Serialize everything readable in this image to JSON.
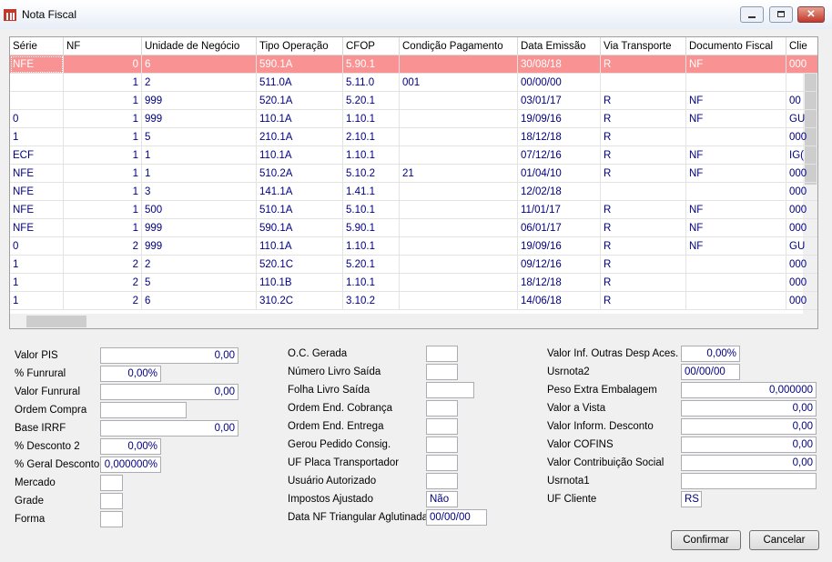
{
  "window": {
    "title": "Nota Fiscal"
  },
  "table": {
    "columns": [
      "Série",
      "NF",
      "Unidade de Negócio",
      "Tipo Operação",
      "CFOP",
      "Condição Pagamento",
      "Data Emissão",
      "Via Transporte",
      "Documento Fiscal",
      "Clie"
    ],
    "rows": [
      [
        "NFE",
        "0",
        "6",
        "590.1A",
        "5.90.1",
        null,
        "30/08/18",
        "R",
        "NF",
        "000"
      ],
      [
        null,
        "1",
        "2",
        "511.0A",
        "5.11.0",
        "001",
        "00/00/00",
        null,
        null,
        null
      ],
      [
        null,
        "1",
        "999",
        "520.1A",
        "5.20.1",
        null,
        "03/01/17",
        "R",
        "NF",
        "00"
      ],
      [
        "0",
        "1",
        "999",
        "110.1A",
        "1.10.1",
        null,
        "19/09/16",
        "R",
        "NF",
        "GU"
      ],
      [
        "1",
        "1",
        "5",
        "210.1A",
        "2.10.1",
        null,
        "18/12/18",
        "R",
        null,
        "000"
      ],
      [
        "ECF",
        "1",
        "1",
        "110.1A",
        "1.10.1",
        null,
        "07/12/16",
        "R",
        "NF",
        "IG("
      ],
      [
        "NFE",
        "1",
        "1",
        "510.2A",
        "5.10.2",
        "21",
        "01/04/10",
        "R",
        "NF",
        "000"
      ],
      [
        "NFE",
        "1",
        "3",
        "141.1A",
        "1.41.1",
        null,
        "12/02/18",
        null,
        null,
        "000"
      ],
      [
        "NFE",
        "1",
        "500",
        "510.1A",
        "5.10.1",
        null,
        "11/01/17",
        "R",
        "NF",
        "000"
      ],
      [
        "NFE",
        "1",
        "999",
        "590.1A",
        "5.90.1",
        null,
        "06/01/17",
        "R",
        "NF",
        "000"
      ],
      [
        "0",
        "2",
        "999",
        "110.1A",
        "1.10.1",
        null,
        "19/09/16",
        "R",
        "NF",
        "GU"
      ],
      [
        "1",
        "2",
        "2",
        "520.1C",
        "5.20.1",
        null,
        "09/12/16",
        "R",
        null,
        "000"
      ],
      [
        "1",
        "2",
        "5",
        "110.1B",
        "1.10.1",
        null,
        "18/12/18",
        "R",
        null,
        "000"
      ],
      [
        "1",
        "2",
        "6",
        "310.2C",
        "3.10.2",
        null,
        "14/06/18",
        "R",
        null,
        "000"
      ]
    ]
  },
  "form": {
    "left": [
      {
        "label": "Valor PIS",
        "value": "0,00"
      },
      {
        "label": "% Funrural",
        "value": "0,00%"
      },
      {
        "label": "Valor Funrural",
        "value": "0,00"
      },
      {
        "label": "Ordem Compra",
        "value": null
      },
      {
        "label": "Base IRRF",
        "value": "0,00"
      },
      {
        "label": "% Desconto 2",
        "value": "0,00%"
      },
      {
        "label": "% Geral Desconto",
        "value": "0,000000%"
      },
      {
        "label": "Mercado",
        "value": null
      },
      {
        "label": "Grade",
        "value": null
      },
      {
        "label": "Forma",
        "value": null
      }
    ],
    "middle": [
      {
        "label": "O.C. Gerada",
        "value": null
      },
      {
        "label": "Número Livro Saída",
        "value": null
      },
      {
        "label": "Folha Livro Saída",
        "value": null
      },
      {
        "label": "Ordem End. Cobrança",
        "value": null
      },
      {
        "label": "Ordem End. Entrega",
        "value": null
      },
      {
        "label": "Gerou Pedido Consig.",
        "value": null
      },
      {
        "label": "UF Placa Transportador",
        "value": null
      },
      {
        "label": "Usuário Autorizado",
        "value": null
      },
      {
        "label": "Impostos Ajustado",
        "value": "Não"
      },
      {
        "label": "Data NF Triangular Aglutinada",
        "value": "00/00/00"
      }
    ],
    "right": [
      {
        "label": "Valor Inf. Outras Desp Aces.",
        "value": "0,00%"
      },
      {
        "label": "Usrnota2",
        "value": "00/00/00"
      },
      {
        "label": "Peso Extra Embalagem",
        "value": "0,000000"
      },
      {
        "label": "Valor a Vista",
        "value": "0,00"
      },
      {
        "label": "Valor Inform. Desconto",
        "value": "0,00"
      },
      {
        "label": "Valor COFINS",
        "value": "0,00"
      },
      {
        "label": "Valor Contribuição Social",
        "value": "0,00"
      },
      {
        "label": "Usrnota1",
        "value": null
      },
      {
        "label": "UF Cliente",
        "value": "RS"
      }
    ]
  },
  "buttons": {
    "confirm": "Confirmar",
    "cancel": "Cancelar"
  }
}
